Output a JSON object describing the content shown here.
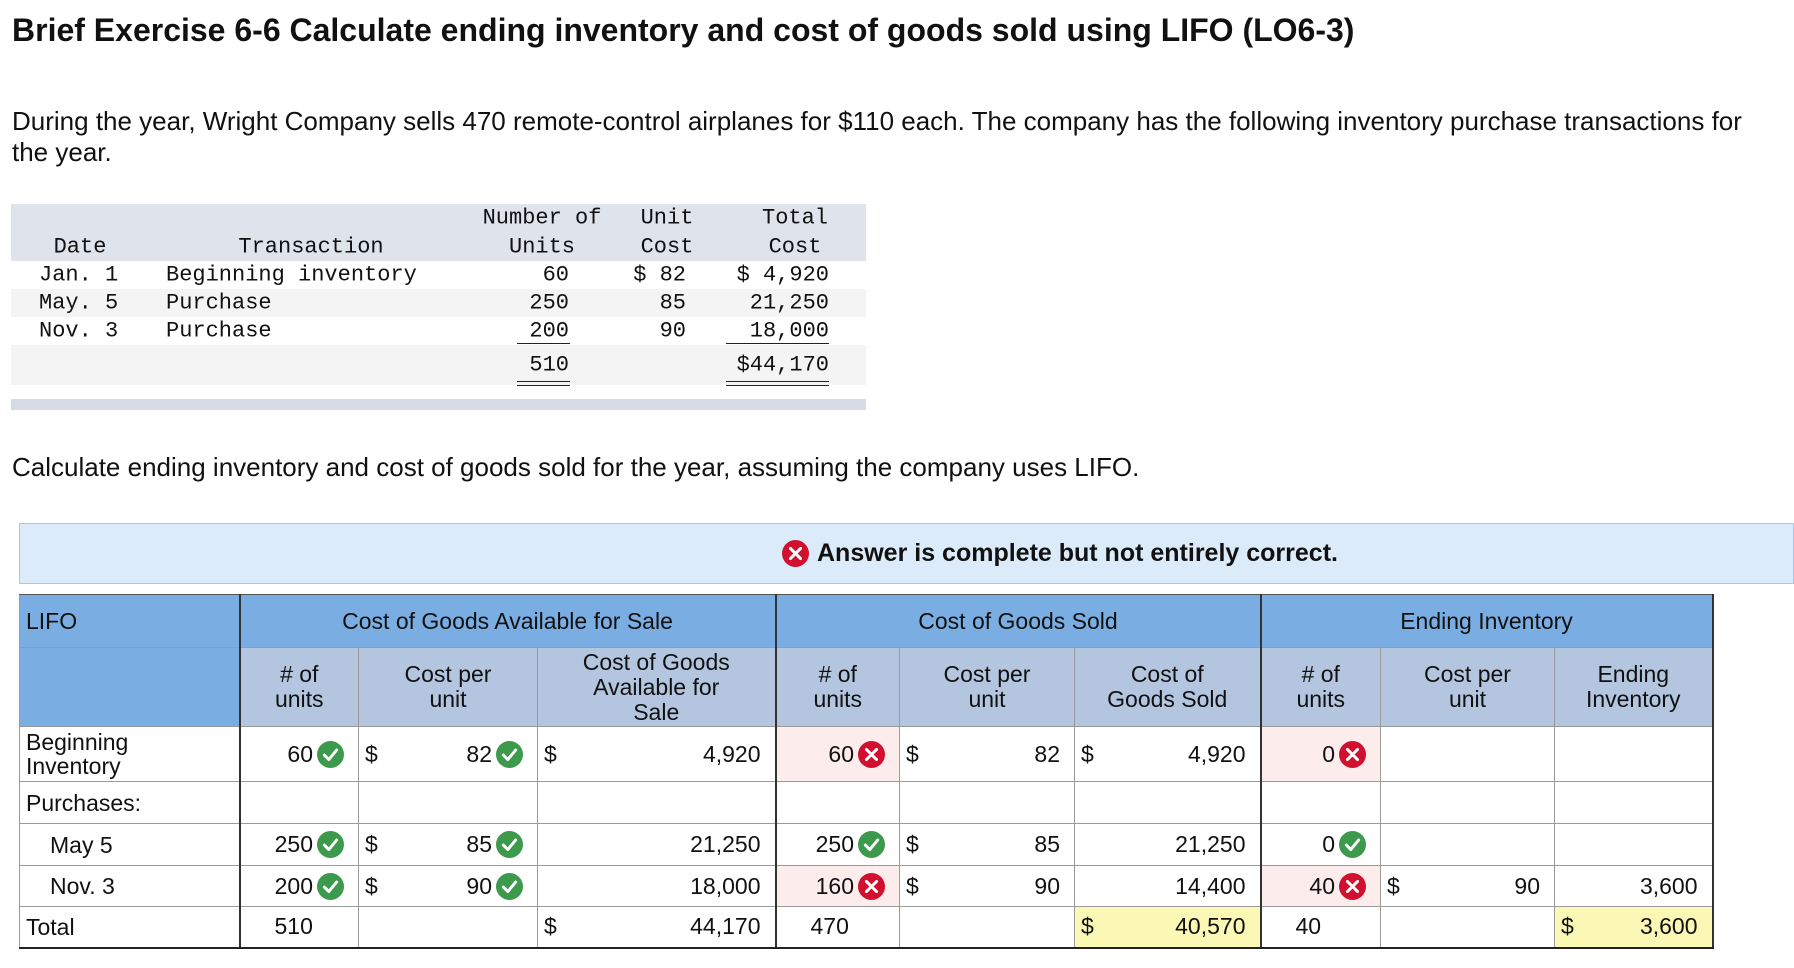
{
  "header": {
    "title": "Brief Exercise 6-6 Calculate ending inventory and cost of goods sold using LIFO (LO6-3)"
  },
  "intro": "During the year, Wright Company sells 470 remote-control airplanes for $110 each. The company has the following inventory purchase transactions for the year.",
  "purchase_table": {
    "headers": [
      [
        "Date"
      ],
      [
        "Transaction"
      ],
      [
        "Number of",
        "Units"
      ],
      [
        "Unit",
        "Cost"
      ],
      [
        "Total",
        "Cost"
      ]
    ],
    "rows": [
      [
        "Jan. 1",
        "Beginning inventory",
        "60",
        "$ 82",
        "$ 4,920"
      ],
      [
        "May. 5",
        "Purchase",
        "250",
        "85",
        "21,250"
      ],
      [
        "Nov. 3",
        "Purchase",
        "200",
        "90",
        "18,000"
      ]
    ],
    "totals": {
      "units": "510",
      "total": "$44,170"
    }
  },
  "instruction": "Calculate ending inventory and cost of goods sold for the year, assuming the company uses LIFO.",
  "feedback": "Answer is complete but not entirely correct.",
  "answer_table": {
    "groups": [
      "LIFO",
      "Cost of Goods Available for Sale",
      "Cost of Goods Sold",
      "Ending Inventory"
    ],
    "subheaders": [
      [
        "# of",
        "units"
      ],
      [
        "Cost per",
        "unit"
      ],
      [
        "Cost of Goods",
        "Available for",
        "Sale"
      ],
      [
        "# of",
        "units"
      ],
      [
        "Cost per",
        "unit"
      ],
      [
        "Cost of",
        "Goods Sold"
      ],
      [
        "# of",
        "units"
      ],
      [
        "Cost per",
        "unit"
      ],
      [
        "Ending",
        "Inventory"
      ]
    ],
    "rows": [
      {
        "label": "Beginning Inventory",
        "cells": [
          {
            "value": "60",
            "status": "correct"
          },
          {
            "prefix": "$",
            "value": "82",
            "status": "correct"
          },
          {
            "prefix": "$",
            "value": "4,920"
          },
          {
            "value": "60",
            "status": "incorrect"
          },
          {
            "prefix": "$",
            "value": "82"
          },
          {
            "prefix": "$",
            "value": "4,920"
          },
          {
            "value": "0",
            "status": "incorrect"
          },
          null,
          null
        ]
      },
      {
        "label": "Purchases:",
        "cells": [
          null,
          null,
          null,
          null,
          null,
          null,
          null,
          null,
          null
        ]
      },
      {
        "label": "May 5",
        "indent": true,
        "cells": [
          {
            "value": "250",
            "status": "correct"
          },
          {
            "prefix": "$",
            "value": "85",
            "status": "correct"
          },
          {
            "value": "21,250"
          },
          {
            "value": "250",
            "status": "correct"
          },
          {
            "prefix": "$",
            "value": "85"
          },
          {
            "value": "21,250"
          },
          {
            "value": "0",
            "status": "correct"
          },
          null,
          null
        ]
      },
      {
        "label": "Nov. 3",
        "indent": true,
        "cells": [
          {
            "value": "200",
            "status": "correct"
          },
          {
            "prefix": "$",
            "value": "90",
            "status": "correct"
          },
          {
            "value": "18,000"
          },
          {
            "value": "160",
            "status": "incorrect"
          },
          {
            "prefix": "$",
            "value": "90"
          },
          {
            "value": "14,400"
          },
          {
            "value": "40",
            "status": "incorrect"
          },
          {
            "prefix": "$",
            "value": "90"
          },
          {
            "value": "3,600"
          }
        ]
      },
      {
        "label": "Total",
        "cells": [
          {
            "value": "510"
          },
          null,
          {
            "prefix": "$",
            "value": "44,170"
          },
          {
            "value": "470"
          },
          null,
          {
            "prefix": "$",
            "value": "40,570",
            "highlight": true
          },
          {
            "value": "40"
          },
          null,
          {
            "prefix": "$",
            "value": "3,600",
            "highlight": true
          }
        ]
      }
    ]
  }
}
